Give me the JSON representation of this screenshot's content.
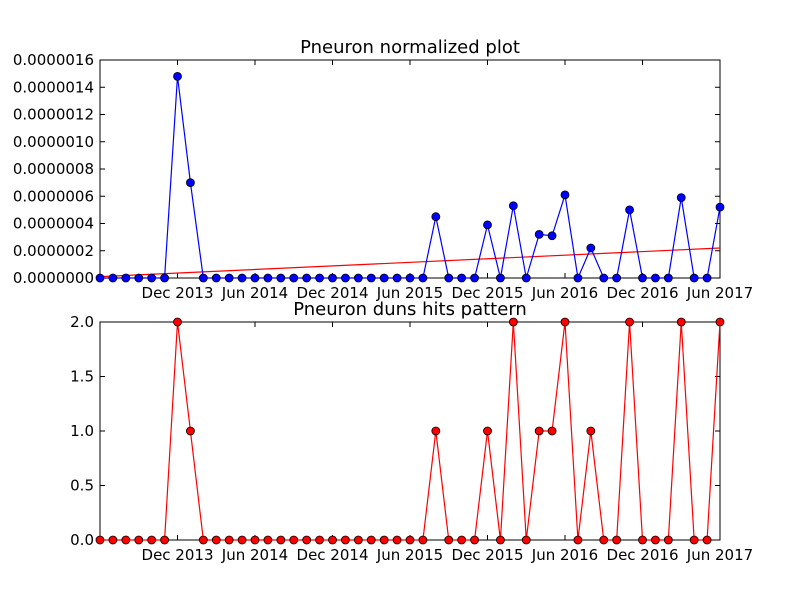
{
  "chart_data": [
    {
      "type": "line",
      "title": "Pneuron normalized plot",
      "xlabel": "",
      "ylabel": "",
      "x_start": "2013-06",
      "x_interval_months": 1,
      "xtick_labels": [
        {
          "month": "2013-12",
          "label": "Dec 2013"
        },
        {
          "month": "2014-06",
          "label": "Jun 2014"
        },
        {
          "month": "2014-12",
          "label": "Dec 2014"
        },
        {
          "month": "2015-06",
          "label": "Jun 2015"
        },
        {
          "month": "2015-12",
          "label": "Dec 2015"
        },
        {
          "month": "2016-06",
          "label": "Jun 2016"
        },
        {
          "month": "2016-12",
          "label": "Dec 2016"
        },
        {
          "month": "2017-06",
          "label": "Jun 2017"
        }
      ],
      "ylim": [
        0,
        1.6e-06
      ],
      "yticks": [
        {
          "value": 0,
          "label": "0.0000000"
        },
        {
          "value": 2e-07,
          "label": "0.0000002"
        },
        {
          "value": 4e-07,
          "label": "0.0000004"
        },
        {
          "value": 6e-07,
          "label": "0.0000006"
        },
        {
          "value": 8e-07,
          "label": "0.0000008"
        },
        {
          "value": 1e-06,
          "label": "0.0000010"
        },
        {
          "value": 1.2e-06,
          "label": "0.0000012"
        },
        {
          "value": 1.4e-06,
          "label": "0.0000014"
        },
        {
          "value": 1.6e-06,
          "label": "0.0000016"
        }
      ],
      "grid": false,
      "series": [
        {
          "color": "#0000ff",
          "marker": "circle",
          "values": [
            0,
            0,
            0,
            0,
            0,
            0,
            1.48e-06,
            7e-07,
            0,
            0,
            0,
            0,
            0,
            0,
            0,
            0,
            0,
            0,
            0,
            0,
            0,
            0,
            0,
            0,
            0,
            0,
            4.5e-07,
            0,
            0,
            0,
            3.9e-07,
            0,
            5.3e-07,
            0,
            3.2e-07,
            3.1e-07,
            6.1e-07,
            0,
            2.2e-07,
            0,
            0,
            5e-07,
            0,
            0,
            0,
            5.9e-07,
            0,
            0,
            5.2e-07
          ]
        }
      ],
      "trendline": {
        "color": "#ff0000",
        "start": 1e-08,
        "end": 2.2e-07
      }
    },
    {
      "type": "line",
      "title": "Pneuron duns hits pattern",
      "xlabel": "",
      "ylabel": "",
      "x_start": "2013-06",
      "x_interval_months": 1,
      "xtick_labels": [
        {
          "month": "2013-12",
          "label": "Dec 2013"
        },
        {
          "month": "2014-06",
          "label": "Jun 2014"
        },
        {
          "month": "2014-12",
          "label": "Dec 2014"
        },
        {
          "month": "2015-06",
          "label": "Jun 2015"
        },
        {
          "month": "2015-12",
          "label": "Dec 2015"
        },
        {
          "month": "2016-06",
          "label": "Jun 2016"
        },
        {
          "month": "2016-12",
          "label": "Dec 2016"
        },
        {
          "month": "2017-06",
          "label": "Jun 2017"
        }
      ],
      "ylim": [
        0,
        2.0
      ],
      "yticks": [
        {
          "value": 0,
          "label": "0.0"
        },
        {
          "value": 0.5,
          "label": "0.5"
        },
        {
          "value": 1.0,
          "label": "1.0"
        },
        {
          "value": 1.5,
          "label": "1.5"
        },
        {
          "value": 2.0,
          "label": "2.0"
        }
      ],
      "grid": false,
      "series": [
        {
          "color": "#ff0000",
          "marker": "circle",
          "values": [
            0,
            0,
            0,
            0,
            0,
            0,
            2,
            1,
            0,
            0,
            0,
            0,
            0,
            0,
            0,
            0,
            0,
            0,
            0,
            0,
            0,
            0,
            0,
            0,
            0,
            0,
            1,
            0,
            0,
            0,
            1,
            0,
            2,
            0,
            1,
            1,
            2,
            0,
            1,
            0,
            0,
            2,
            0,
            0,
            0,
            2,
            0,
            0,
            2
          ]
        }
      ]
    }
  ]
}
